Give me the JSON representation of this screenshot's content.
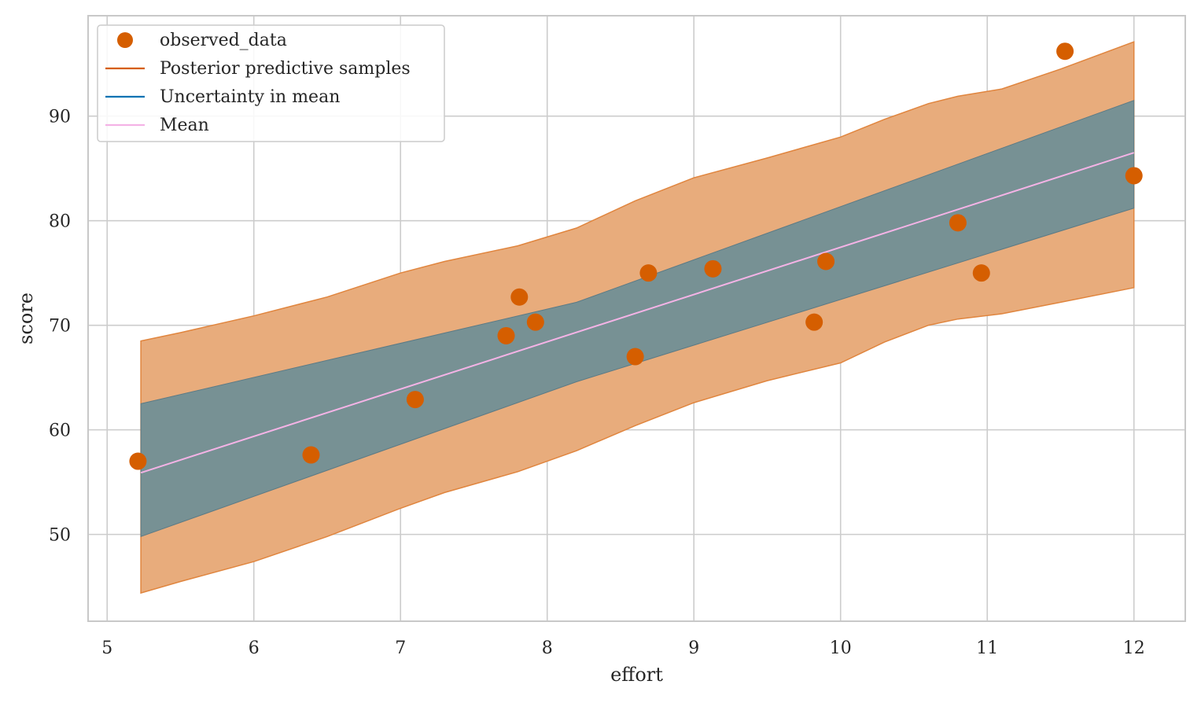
{
  "chart_data": {
    "type": "scatter",
    "title": "",
    "xlabel": "effort",
    "ylabel": "score",
    "xlim": [
      4.87,
      12.35
    ],
    "ylim": [
      41.7,
      99.6
    ],
    "x_ticks": [
      5,
      6,
      7,
      8,
      9,
      10,
      11,
      12
    ],
    "y_ticks": [
      50,
      60,
      70,
      80,
      90
    ],
    "grid": true,
    "legend": {
      "position": "top-left",
      "entries": [
        {
          "label": "observed_data",
          "marker": "circle",
          "color": "#d55e00"
        },
        {
          "label": "Posterior predictive samples",
          "marker": "line",
          "color": "#d55e00"
        },
        {
          "label": "Uncertainty in mean",
          "marker": "line",
          "color": "#0072b2"
        },
        {
          "label": "Mean",
          "marker": "line",
          "color": "#f4b3e6"
        }
      ]
    },
    "colors": {
      "observed": "#d55e00",
      "predictive_fill": "#e8ac7c",
      "predictive_edge": "#e0853e",
      "mean_band_fill": "#738f95",
      "mean_band_edge": "#5b7a85",
      "mean_line": "#f4b3e6",
      "grid": "#cccccc",
      "frame": "#c8c8c8"
    },
    "observed_data": {
      "x": [
        5.21,
        6.39,
        7.1,
        7.72,
        7.81,
        7.92,
        8.6,
        8.69,
        9.13,
        9.82,
        9.9,
        10.8,
        10.96,
        11.53,
        12.0
      ],
      "y": [
        57.0,
        57.6,
        62.9,
        69.0,
        72.7,
        70.3,
        67.0,
        75.0,
        75.4,
        70.3,
        76.1,
        79.8,
        75.0,
        96.2,
        84.3
      ]
    },
    "posterior_predictive_band": {
      "x": [
        5.23,
        5.5,
        6.0,
        6.5,
        7.0,
        7.3,
        7.8,
        8.2,
        8.6,
        9.0,
        9.5,
        10.0,
        10.3,
        10.6,
        10.8,
        11.1,
        11.5,
        12.0
      ],
      "upper": [
        68.5,
        69.3,
        70.9,
        72.7,
        75.0,
        76.1,
        77.6,
        79.3,
        81.9,
        84.1,
        86.0,
        88.0,
        89.7,
        91.2,
        91.9,
        92.6,
        94.5,
        97.1
      ],
      "lower": [
        44.4,
        45.5,
        47.4,
        49.8,
        52.5,
        54.0,
        56.0,
        58.0,
        60.4,
        62.6,
        64.7,
        66.4,
        68.4,
        70.0,
        70.6,
        71.1,
        72.2,
        73.6
      ]
    },
    "mean_uncertainty_band": {
      "x": [
        5.23,
        8.2,
        12.0
      ],
      "upper": [
        62.5,
        72.2,
        91.5
      ],
      "lower": [
        49.8,
        64.6,
        81.2
      ]
    },
    "mean_line": {
      "x": [
        5.23,
        12.0
      ],
      "y": [
        55.9,
        86.5
      ]
    }
  }
}
